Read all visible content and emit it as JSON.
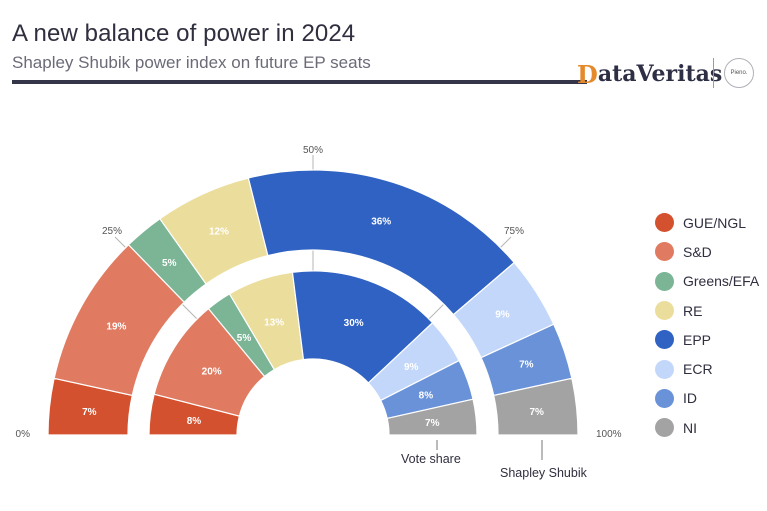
{
  "header": {
    "title": "A new balance of power in 2024",
    "subtitle": "Shapley Shubik power index on future EP seats"
  },
  "brand": {
    "logo_mark": "D",
    "logo_text": "ataVeritas",
    "partner": "Pieno."
  },
  "parties": [
    {
      "name": "GUE/NGL",
      "color": "#d4512f"
    },
    {
      "name": "S&D",
      "color": "#e07b62"
    },
    {
      "name": "Greens/EFA",
      "color": "#7bb595"
    },
    {
      "name": "RE",
      "color": "#ebdd9c"
    },
    {
      "name": "EPP",
      "color": "#2f62c2"
    },
    {
      "name": "ECR",
      "color": "#c3d7fa"
    },
    {
      "name": "ID",
      "color": "#6a92d8"
    },
    {
      "name": "NI",
      "color": "#a3a3a3"
    }
  ],
  "chart_data": {
    "type": "semicircle-donut",
    "series": [
      {
        "name": "Vote share",
        "values": [
          8,
          20,
          5,
          13,
          30,
          9,
          8,
          7
        ],
        "labels": [
          "8%",
          "20%",
          "5%",
          "13%",
          "30%",
          "9%",
          "8%",
          "7%"
        ]
      },
      {
        "name": "Shapley Shubik",
        "values": [
          7,
          19,
          5,
          12,
          36,
          9,
          7,
          7
        ],
        "labels": [
          "7%",
          "19%",
          "5%",
          "12%",
          "36%",
          "9%",
          "7%",
          "7%"
        ]
      }
    ],
    "ticks": [
      {
        "value": 0,
        "label": "0%"
      },
      {
        "value": 25,
        "label": "25%"
      },
      {
        "value": 50,
        "label": "50%"
      },
      {
        "value": 75,
        "label": "75%"
      },
      {
        "value": 100,
        "label": "100%"
      }
    ]
  }
}
